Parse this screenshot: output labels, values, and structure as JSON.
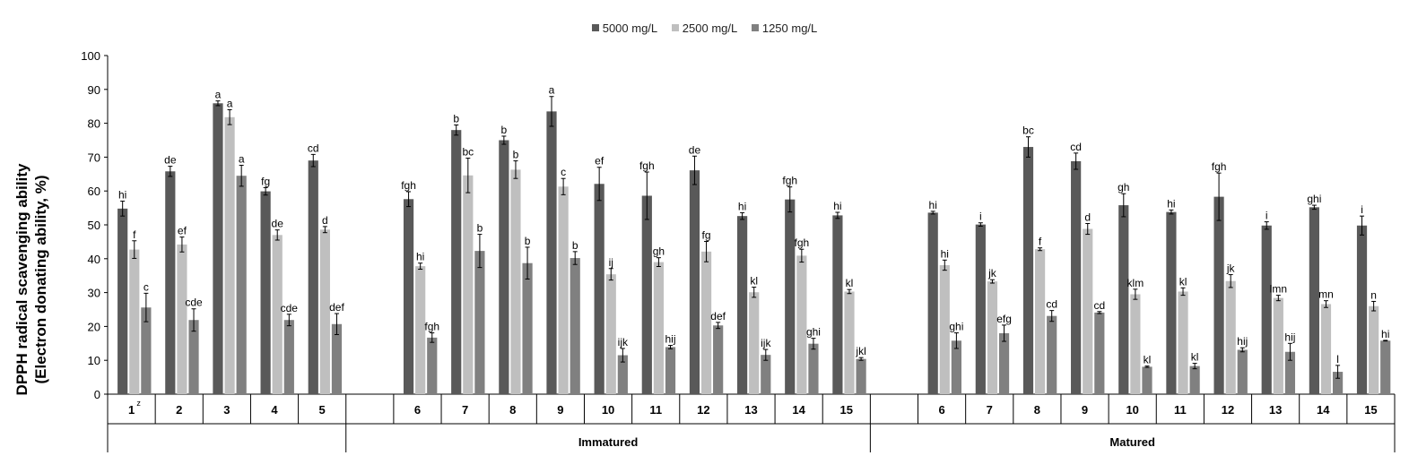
{
  "chart_data": {
    "type": "bar",
    "ylabel_line1": "DPPH radical scavenging ability",
    "ylabel_line2": "(Electron donating ability, %)",
    "ylim": [
      0,
      100
    ],
    "yticks": [
      "0",
      "10",
      "20",
      "30",
      "40",
      "50",
      "60",
      "70",
      "80",
      "90",
      "100"
    ],
    "legend_position": "top-center",
    "series": [
      {
        "name": "5000 mg/L",
        "color": "#595959"
      },
      {
        "name": "2500 mg/L",
        "color": "#bfbfbf"
      },
      {
        "name": "1250 mg/L",
        "color": "#808080"
      }
    ],
    "groups": [
      {
        "name": "",
        "categories": [
          "1",
          "2",
          "3",
          "4",
          "5"
        ]
      },
      {
        "name": "Immatured",
        "categories": [
          "6",
          "7",
          "8",
          "9",
          "10",
          "11",
          "12",
          "13",
          "14",
          "15"
        ]
      },
      {
        "name": "Matured",
        "categories": [
          "6",
          "7",
          "8",
          "9",
          "10",
          "11",
          "12",
          "13",
          "14",
          "15"
        ]
      }
    ],
    "superscript_note": {
      "category_index": 0,
      "text": "z"
    },
    "data": [
      {
        "values": [
          54.8,
          42.7,
          25.6
        ],
        "errors": [
          2.2,
          2.6,
          4.2
        ],
        "labels": [
          "hi",
          "f",
          "c"
        ]
      },
      {
        "values": [
          65.8,
          44.2,
          21.9
        ],
        "errors": [
          1.5,
          2.2,
          3.3
        ],
        "labels": [
          "de",
          "ef",
          "cde"
        ]
      },
      {
        "values": [
          85.9,
          81.8,
          64.5
        ],
        "errors": [
          0.7,
          2.2,
          3.1
        ],
        "labels": [
          "a",
          "a",
          "a"
        ]
      },
      {
        "values": [
          59.9,
          47.0,
          21.9
        ],
        "errors": [
          1.1,
          1.5,
          1.7
        ],
        "labels": [
          "fg",
          "de",
          "cde"
        ]
      },
      {
        "values": [
          69.0,
          48.6,
          20.7
        ],
        "errors": [
          1.8,
          0.9,
          3.1
        ],
        "labels": [
          "cd",
          "d",
          "def"
        ]
      },
      {
        "values": [
          57.6,
          37.8,
          16.7
        ],
        "errors": [
          2.2,
          0.9,
          1.4
        ],
        "labels": [
          "fgh",
          "hi",
          "fgh"
        ]
      },
      {
        "values": [
          78.0,
          64.6,
          42.3
        ],
        "errors": [
          1.5,
          5.1,
          4.9
        ],
        "labels": [
          "b",
          "bc",
          "b"
        ]
      },
      {
        "values": [
          75.0,
          66.3,
          38.7
        ],
        "errors": [
          1.2,
          2.6,
          4.7
        ],
        "labels": [
          "b",
          "b",
          "b"
        ]
      },
      {
        "values": [
          83.5,
          61.3,
          40.2
        ],
        "errors": [
          4.4,
          2.4,
          1.9
        ],
        "labels": [
          "a",
          "c",
          "b"
        ]
      },
      {
        "values": [
          62.1,
          35.4,
          11.5
        ],
        "errors": [
          4.9,
          1.7,
          2.0
        ],
        "labels": [
          "ef",
          "ij",
          "ijk"
        ]
      },
      {
        "values": [
          58.6,
          39.0,
          13.9
        ],
        "errors": [
          7.0,
          1.3,
          0.5
        ],
        "labels": [
          "fgh",
          "gh",
          "hij"
        ]
      },
      {
        "values": [
          66.1,
          42.1,
          20.3
        ],
        "errors": [
          4.2,
          3.0,
          0.9
        ],
        "labels": [
          "de",
          "fg",
          "def"
        ]
      },
      {
        "values": [
          52.6,
          30.1,
          11.6
        ],
        "errors": [
          1.0,
          1.5,
          1.6
        ],
        "labels": [
          "hi",
          "kl",
          "ijk"
        ]
      },
      {
        "values": [
          57.5,
          40.9,
          14.9
        ],
        "errors": [
          3.7,
          1.9,
          1.6
        ],
        "labels": [
          "fgh",
          "fgh",
          "ghi"
        ]
      },
      {
        "values": [
          52.8,
          30.3,
          10.4
        ],
        "errors": [
          0.9,
          0.6,
          0.4
        ],
        "labels": [
          "hi",
          "kl",
          "jkl"
        ]
      },
      {
        "values": [
          53.6,
          38.1,
          15.8
        ],
        "errors": [
          0.4,
          1.5,
          2.3
        ],
        "labels": [
          "hi",
          "hi",
          "ghi"
        ]
      },
      {
        "values": [
          50.1,
          33.3,
          18.0
        ],
        "errors": [
          0.5,
          0.5,
          2.4
        ],
        "labels": [
          "i",
          "jk",
          "efg"
        ]
      },
      {
        "values": [
          73.0,
          42.8,
          23.1
        ],
        "errors": [
          3.0,
          0.4,
          1.6
        ],
        "labels": [
          "bc",
          "f",
          "cd"
        ]
      },
      {
        "values": [
          68.8,
          48.8,
          24.1
        ],
        "errors": [
          2.4,
          1.6,
          0.3
        ],
        "labels": [
          "cd",
          "d",
          "cd"
        ]
      },
      {
        "values": [
          55.8,
          29.5,
          8.1
        ],
        "errors": [
          3.4,
          1.5,
          0.2
        ],
        "labels": [
          "gh",
          "klm",
          "kl"
        ]
      },
      {
        "values": [
          53.8,
          30.3,
          8.3
        ],
        "errors": [
          0.6,
          1.1,
          0.8
        ],
        "labels": [
          "hi",
          "kl",
          "kl"
        ]
      },
      {
        "values": [
          58.3,
          33.4,
          13.1
        ],
        "errors": [
          7.0,
          1.9,
          0.6
        ],
        "labels": [
          "fgh",
          "jk",
          "hij"
        ]
      },
      {
        "values": [
          49.8,
          28.4,
          12.5
        ],
        "errors": [
          1.1,
          0.8,
          2.5
        ],
        "labels": [
          "i",
          "lmn",
          "hij"
        ]
      },
      {
        "values": [
          55.2,
          26.6,
          6.6
        ],
        "errors": [
          0.6,
          1.0,
          1.9
        ],
        "labels": [
          "ghi",
          "mn",
          "l"
        ]
      },
      {
        "values": [
          49.8,
          26.0,
          15.8
        ],
        "errors": [
          2.8,
          1.4,
          0.1
        ],
        "labels": [
          "i",
          "n",
          "hi"
        ]
      }
    ]
  }
}
